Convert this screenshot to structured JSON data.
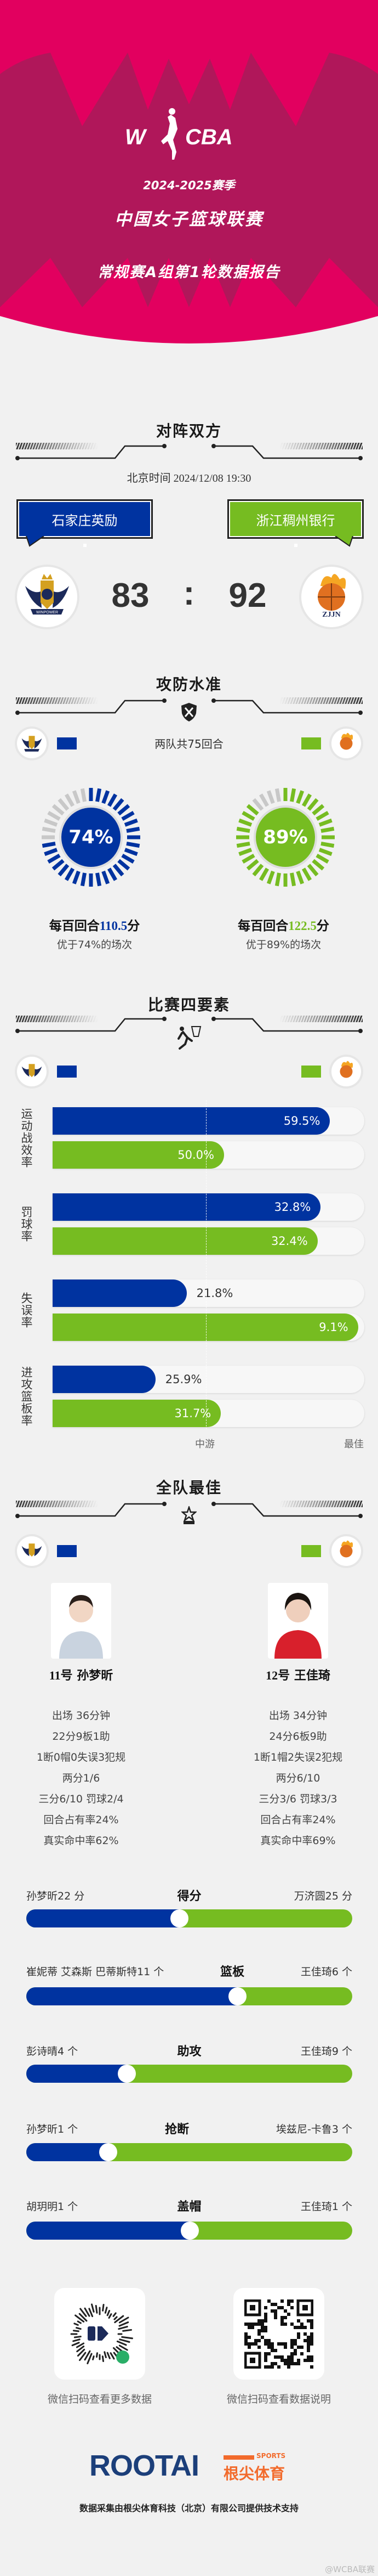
{
  "colors": {
    "home": "#0033a0",
    "away": "#76bc21",
    "brand": "#e2005f",
    "brand_dark": "#b0175a"
  },
  "header": {
    "logo_text": "WCBA",
    "season": "2024-2025赛季",
    "league": "中国女子篮球联赛",
    "report_title": "常规赛A组第1轮数据报告"
  },
  "matchup": {
    "title": "对阵双方",
    "datetime": "北京时间 2024/12/08 19:30",
    "home": {
      "name": "石家庄英励",
      "score": "83",
      "logo_text": "WINPOWER"
    },
    "separator": ":",
    "away": {
      "name": "浙江稠州银行",
      "score": "92",
      "logo_text": "ZJJN"
    }
  },
  "efficiency": {
    "title": "攻防水准",
    "possessions": "两队共75回合",
    "home": {
      "percentile": 0.74,
      "pct_label": "74%",
      "prefix": "每百回合",
      "ppp": "110.5",
      "suffix": "分",
      "better": "优于74%的场次"
    },
    "away": {
      "percentile": 0.89,
      "pct_label": "89%",
      "prefix": "每百回合",
      "ppp": "122.5",
      "suffix": "分",
      "better": "优于89%的场次"
    }
  },
  "four_factors": {
    "title": "比赛四要素",
    "axis": {
      "mid": "中游",
      "best": "最佳"
    },
    "factors": [
      {
        "label": "运动战效率",
        "home": {
          "value": "59.5%",
          "rank_fill": 0.89
        },
        "away": {
          "value": "50.0%",
          "rank_fill": 0.55
        }
      },
      {
        "label": "罚球率",
        "home": {
          "value": "32.8%",
          "rank_fill": 0.86
        },
        "away": {
          "value": "32.4%",
          "rank_fill": 0.85
        }
      },
      {
        "label": "失误率",
        "home": {
          "value": "21.8%",
          "rank_fill": 0.43
        },
        "away": {
          "value": "9.1%",
          "rank_fill": 0.98
        }
      },
      {
        "label": "进攻篮板率",
        "home": {
          "value": "25.9%",
          "rank_fill": 0.33
        },
        "away": {
          "value": "31.7%",
          "rank_fill": 0.54
        }
      }
    ]
  },
  "best_players": {
    "title": "全队最佳",
    "home": {
      "number": "11号",
      "name": "孙梦昕",
      "stats": [
        "出场 36分钟",
        "22分9板1助",
        "1断0帽0失误3犯规",
        "两分1/6",
        "三分6/10 罚球2/4",
        "回合占有率24%",
        "真实命中率62%"
      ]
    },
    "away": {
      "number": "12号",
      "name": "王佳琦",
      "stats": [
        "出场 34分钟",
        "24分6板9助",
        "1断1帽2失误2犯规",
        "两分6/10",
        "三分3/6 罚球3/3",
        "回合占有率24%",
        "真实命中率69%"
      ]
    }
  },
  "leaders": [
    {
      "category": "得分",
      "home_text": "孙梦昕22 分",
      "away_text": "万济圆25 分",
      "home_value": 22,
      "away_value": 25
    },
    {
      "category": "篮板",
      "home_text": "崔妮蒂 艾森斯 巴蒂斯特11 个",
      "away_text": "王佳琦6 个",
      "home_value": 11,
      "away_value": 6
    },
    {
      "category": "助攻",
      "home_text": "彭诗晴4 个",
      "away_text": "王佳琦9 个",
      "home_value": 4,
      "away_value": 9
    },
    {
      "category": "抢断",
      "home_text": "孙梦昕1 个",
      "away_text": "埃兹尼-卡鲁3 个",
      "home_value": 1,
      "away_value": 3
    },
    {
      "category": "盖帽",
      "home_text": "胡玥明1 个",
      "away_text": "王佳琦1 个",
      "home_value": 1,
      "away_value": 1
    }
  ],
  "footer": {
    "qr_left_caption": "微信扫码查看更多数据",
    "qr_right_caption": "微信扫码查看数据说明",
    "sponsor_logo": "ROOTAI",
    "sponsor_sports": "SPORTS",
    "sponsor_cn": "根尖体育",
    "credit": "数据采集由根尖体育科技（北京）有限公司提供技术支持",
    "watermark": "@WCBA联赛"
  }
}
